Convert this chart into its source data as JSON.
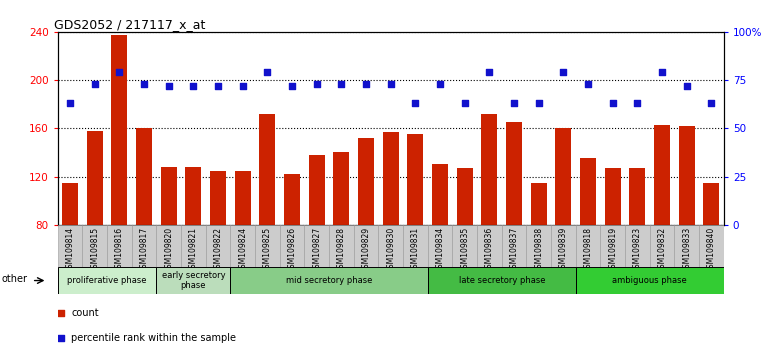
{
  "title": "GDS2052 / 217117_x_at",
  "samples": [
    "GSM109814",
    "GSM109815",
    "GSM109816",
    "GSM109817",
    "GSM109820",
    "GSM109821",
    "GSM109822",
    "GSM109824",
    "GSM109825",
    "GSM109826",
    "GSM109827",
    "GSM109828",
    "GSM109829",
    "GSM109830",
    "GSM109831",
    "GSM109834",
    "GSM109835",
    "GSM109836",
    "GSM109837",
    "GSM109838",
    "GSM109839",
    "GSM109818",
    "GSM109819",
    "GSM109823",
    "GSM109832",
    "GSM109833",
    "GSM109840"
  ],
  "counts": [
    115,
    158,
    237,
    160,
    128,
    128,
    125,
    125,
    172,
    122,
    138,
    140,
    152,
    157,
    155,
    130,
    127,
    172,
    165,
    115,
    160,
    135,
    127,
    127,
    163,
    162,
    115
  ],
  "percentiles": [
    63,
    73,
    79,
    73,
    72,
    72,
    72,
    72,
    79,
    72,
    73,
    73,
    73,
    73,
    63,
    73,
    63,
    79,
    63,
    63,
    79,
    73,
    63,
    63,
    79,
    72,
    63
  ],
  "phases": [
    {
      "label": "proliferative phase",
      "start": 0,
      "end": 4,
      "color": "#cceecc"
    },
    {
      "label": "early secretory\nphase",
      "start": 4,
      "end": 7,
      "color": "#bbddbb"
    },
    {
      "label": "mid secretory phase",
      "start": 7,
      "end": 15,
      "color": "#88cc88"
    },
    {
      "label": "late secretory phase",
      "start": 15,
      "end": 21,
      "color": "#44bb44"
    },
    {
      "label": "ambiguous phase",
      "start": 21,
      "end": 27,
      "color": "#33cc33"
    }
  ],
  "ylim_left": [
    80,
    240
  ],
  "ylim_right": [
    0,
    100
  ],
  "yticks_left": [
    80,
    120,
    160,
    200,
    240
  ],
  "yticks_right": [
    0,
    25,
    50,
    75,
    100
  ],
  "bar_color": "#cc2200",
  "dot_color": "#1111cc",
  "bg_color": "#ffffff",
  "tick_bg": "#cccccc"
}
